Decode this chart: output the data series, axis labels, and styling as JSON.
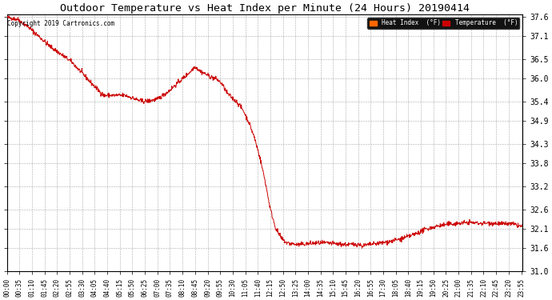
{
  "title": "Outdoor Temperature vs Heat Index per Minute (24 Hours) 20190414",
  "copyright_text": "Copyright 2019 Cartronics.com",
  "legend_label1": "Heat Index  (°F)",
  "legend_label2": "Temperature  (°F)",
  "legend_color1": "#ff6600",
  "legend_color2": "#cc0000",
  "line_color": "#cc0000",
  "background_color": "#ffffff",
  "grid_color": "#aaaaaa",
  "ylim": [
    31.0,
    37.65
  ],
  "yticks": [
    31.0,
    31.6,
    32.1,
    32.6,
    33.2,
    33.8,
    34.3,
    34.9,
    35.4,
    36.0,
    36.5,
    37.1,
    37.6
  ],
  "title_fontsize": 9.5,
  "xlabel_fontsize": 5.5,
  "ylabel_fontsize": 7,
  "copyright_fontsize": 5.5,
  "legend_fontsize": 5.5
}
